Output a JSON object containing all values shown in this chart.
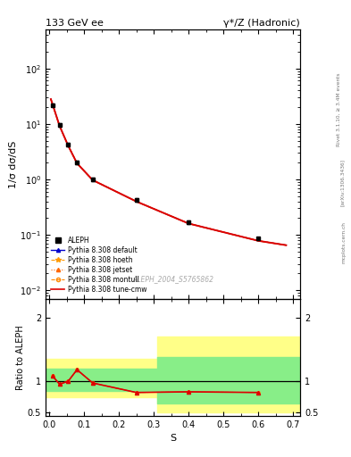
{
  "title_left": "133 GeV ee",
  "title_right": "γ*/Z (Hadronic)",
  "xlabel": "S",
  "ylabel_main": "1/σ dσ/dS",
  "ylabel_ratio": "Ratio to ALEPH",
  "watermark": "ALEPH_2004_S5765862",
  "right_label_top": "Rivet 3.1.10, ≥ 3.4M events",
  "right_label_mid": "[arXiv:1306.3436]",
  "right_label_bot": "mcplots.cern.ch",
  "data_x": [
    0.01,
    0.03,
    0.055,
    0.08,
    0.125,
    0.25,
    0.4,
    0.6
  ],
  "data_y": [
    22.0,
    9.5,
    4.2,
    2.0,
    1.0,
    0.42,
    0.17,
    0.085
  ],
  "data_yerr_lo": [
    1.5,
    0.7,
    0.3,
    0.15,
    0.07,
    0.03,
    0.012,
    0.006
  ],
  "data_yerr_hi": [
    1.5,
    0.7,
    0.3,
    0.15,
    0.07,
    0.03,
    0.012,
    0.006
  ],
  "mc_x": [
    0.005,
    0.01,
    0.03,
    0.055,
    0.08,
    0.125,
    0.25,
    0.4,
    0.6,
    0.68
  ],
  "mc_y": [
    28.0,
    22.5,
    9.2,
    4.0,
    1.95,
    0.97,
    0.4,
    0.16,
    0.078,
    0.065
  ],
  "ratio_x": [
    0.01,
    0.03,
    0.055,
    0.08,
    0.125,
    0.25,
    0.4,
    0.6
  ],
  "ratio_y": [
    1.08,
    0.95,
    1.0,
    1.18,
    0.97,
    0.82,
    0.83,
    0.82
  ],
  "ylim_main": [
    0.007,
    500
  ],
  "ylim_ratio": [
    0.45,
    2.3
  ],
  "xlim": [
    -0.01,
    0.72
  ],
  "color_data": "#000000",
  "color_mc_default": "#0000cc",
  "color_mc_hoeth": "#ff9900",
  "color_mc_jetset": "#ff6600",
  "color_mc_montull": "#ff8800",
  "color_mc_cmw": "#dd0000",
  "color_yellow": "#ffff88",
  "color_green": "#88ee88",
  "background": "#ffffff"
}
